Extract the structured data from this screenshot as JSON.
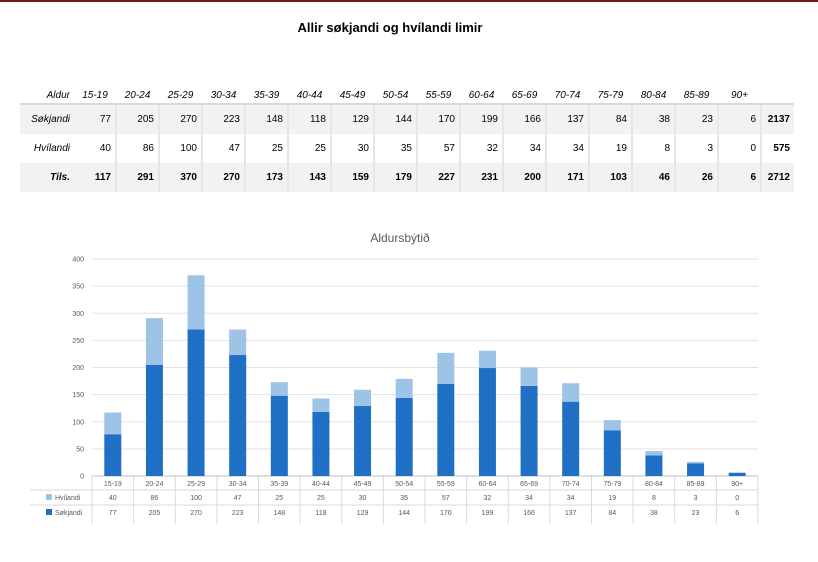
{
  "title": "Allir søkjandi og hvílandi limir",
  "table": {
    "corner_label": "Aldur",
    "columns": [
      "15-19",
      "20-24",
      "25-29",
      "30-34",
      "35-39",
      "40-44",
      "45-49",
      "50-54",
      "55-59",
      "60-64",
      "65-69",
      "70-74",
      "75-79",
      "80-84",
      "85-89",
      "90+"
    ],
    "rows": [
      {
        "label": "Søkjandi",
        "values": [
          "77",
          "205",
          "270",
          "223",
          "148",
          "118",
          "129",
          "144",
          "170",
          "199",
          "166",
          "137",
          "84",
          "38",
          "23",
          "6"
        ],
        "total": "2137"
      },
      {
        "label": "Hvílandi",
        "values": [
          "40",
          "86",
          "100",
          "47",
          "25",
          "25",
          "30",
          "35",
          "57",
          "32",
          "34",
          "34",
          "19",
          "8",
          "3",
          "0"
        ],
        "total": "575"
      },
      {
        "label": "Tils.",
        "values": [
          "117",
          "291",
          "370",
          "270",
          "173",
          "143",
          "159",
          "179",
          "227",
          "231",
          "200",
          "171",
          "103",
          "46",
          "26",
          "6"
        ],
        "total": "2712"
      }
    ]
  },
  "chart_data": {
    "type": "bar",
    "stacked": true,
    "title": "Aldursbýtið",
    "categories": [
      "15-19",
      "20-24",
      "25-29",
      "30-34",
      "35-39",
      "40-44",
      "45-49",
      "50-54",
      "55-59",
      "60-64",
      "65-69",
      "70-74",
      "75-79",
      "80-84",
      "85-89",
      "90+"
    ],
    "series": [
      {
        "name": "Søkjandi",
        "values": [
          77,
          205,
          270,
          223,
          148,
          118,
          129,
          144,
          170,
          199,
          166,
          137,
          84,
          38,
          23,
          6
        ],
        "color": "#1f6fc5"
      },
      {
        "name": "Hvílandi",
        "values": [
          40,
          86,
          100,
          47,
          25,
          25,
          30,
          35,
          57,
          32,
          34,
          34,
          19,
          8,
          3,
          0
        ],
        "color": "#9dc3e6"
      }
    ],
    "ylim": [
      0,
      400
    ],
    "yticks": [
      0,
      50,
      100,
      150,
      200,
      250,
      300,
      350,
      400
    ],
    "grid": true,
    "legend": "data-table-below"
  }
}
